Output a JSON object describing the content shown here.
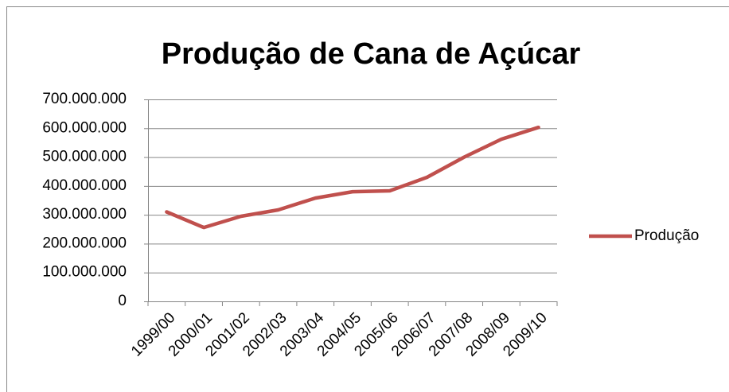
{
  "chart_data": {
    "type": "line",
    "title": "Produção de Cana de Açúcar",
    "categories": [
      "1999/00",
      "2000/01",
      "2001/02",
      "2002/03",
      "2003/04",
      "2004/05",
      "2005/06",
      "2006/07",
      "2007/08",
      "2008/09",
      "2009/10"
    ],
    "series": [
      {
        "name": "Produção",
        "color": "#c0504d",
        "values": [
          310000000,
          256000000,
          295000000,
          317000000,
          358000000,
          380000000,
          383000000,
          430000000,
          500000000,
          562000000,
          603000000
        ]
      }
    ],
    "ylim": [
      0,
      700000000
    ],
    "yticks": [
      0,
      {
        "value": 100000000,
        "label": "100.000.000"
      },
      {
        "value": 200000000,
        "label": "200.000.000"
      },
      {
        "value": 300000000,
        "label": "300.000.000"
      },
      {
        "value": 400000000,
        "label": "400.000.000"
      },
      {
        "value": 500000000,
        "label": "500.000.000"
      },
      {
        "value": 600000000,
        "label": "600.000.000"
      },
      {
        "value": 700000000,
        "label": "700.000.000"
      }
    ],
    "grid": true,
    "legend": "right"
  }
}
